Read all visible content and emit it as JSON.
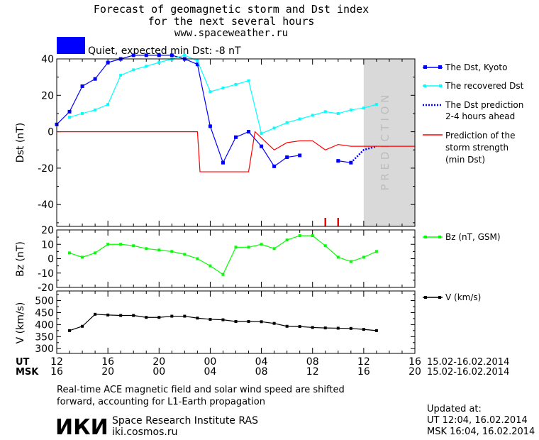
{
  "header": {
    "title_line1": "Forecast of geomagnetic storm and Dst index",
    "title_line2": "for the next several hours",
    "site": "www.spaceweather.ru",
    "status_color": "#0000ff",
    "status_text": "Quiet, expected min Dst: -8 nT"
  },
  "prediction_label": "P R E D I C T I O N",
  "time_axis": {
    "ut_label": "UT",
    "msk_label": "MSK",
    "ut_ticks": [
      "12",
      "16",
      "20",
      "00",
      "04",
      "08",
      "12",
      "16"
    ],
    "msk_ticks": [
      "16",
      "20",
      "00",
      "04",
      "08",
      "12",
      "16",
      "20"
    ],
    "date_range_ut": "15.02-16.02.2014",
    "date_range_msk": "15.02-16.02.2014"
  },
  "footer": {
    "note_line1": "Real-time ACE magnetic field and solar wind speed are shifted",
    "note_line2": "forward, accounting for L1-Earth propagation",
    "logo_text": "ИКИ",
    "institute": "Space Research Institute RAS",
    "institute_url": "iki.cosmos.ru",
    "updated_label": "Updated at:",
    "updated_ut": "UT   12:04, 16.02.2014",
    "updated_msk": "MSK 16:04, 16.02.2014"
  },
  "chart_data": [
    {
      "type": "line",
      "panel": "dst",
      "ylabel": "Dst (nT)",
      "ylim": [
        -52,
        40
      ],
      "yticks": [
        40,
        20,
        0,
        -20,
        -40
      ],
      "x_unit": "hours since 12 UT 15.02.2014",
      "xlim": [
        0,
        28
      ],
      "prediction_start": 24,
      "series": [
        {
          "name": "The Dst, Kyoto",
          "color": "#0000ff",
          "x": [
            0,
            1,
            2,
            3,
            4,
            5,
            6,
            7,
            8,
            9,
            10,
            11,
            12,
            13,
            14,
            15,
            16,
            17,
            18,
            19,
            20
          ],
          "y": [
            4,
            11,
            25,
            29,
            38,
            40,
            42,
            42,
            42,
            42,
            40,
            37,
            3,
            -17,
            -3,
            0,
            -8,
            -19,
            -14,
            -13,
            null
          ]
        },
        {
          "name": "The Dst, Kyoto (latest)",
          "color": "#0000ff",
          "x": [
            22,
            23
          ],
          "y": [
            -16,
            -17
          ]
        },
        {
          "name": "The recovered Dst",
          "color": "#00ffff",
          "x": [
            1,
            2,
            3,
            4,
            5,
            6,
            7,
            8,
            9,
            10,
            11,
            12,
            13,
            14,
            15,
            16,
            17,
            18,
            19,
            20,
            21,
            22,
            23,
            24,
            25
          ],
          "y": [
            8,
            10,
            12,
            15,
            31,
            34,
            36,
            38,
            40,
            42,
            39,
            22,
            24,
            26,
            28,
            -1,
            2,
            5,
            7,
            9,
            11,
            10,
            12,
            13,
            15
          ]
        },
        {
          "name": "The Dst prediction 2-4 hours ahead",
          "color": "#0000ff",
          "x": [
            23,
            24,
            25
          ],
          "y": [
            -17,
            -10,
            -8
          ]
        },
        {
          "name": "Prediction of the storm strength (min Dst)",
          "color": "#ff0000",
          "x": [
            0,
            11,
            11.2,
            15,
            15.5,
            17,
            18,
            19,
            20,
            21,
            22,
            23,
            24,
            25,
            26,
            27,
            28
          ],
          "y": [
            0,
            0,
            -22,
            -22,
            0,
            -10,
            -6,
            -5,
            -5,
            -10,
            -7,
            -8,
            -8,
            -8,
            -8,
            -8,
            -8
          ]
        }
      ],
      "storm_markers_x": [
        21,
        22
      ]
    },
    {
      "type": "line",
      "panel": "bz",
      "ylabel": "Bz (nT)",
      "ylim": [
        -20,
        20
      ],
      "yticks": [
        20,
        10,
        0,
        -10,
        -20
      ],
      "series": [
        {
          "name": "Bz (nT, GSM)",
          "color": "#00ff00",
          "x": [
            1,
            2,
            3,
            4,
            5,
            6,
            7,
            8,
            9,
            10,
            11,
            12,
            13,
            14,
            15,
            16,
            17,
            18,
            19,
            20,
            21,
            22,
            23,
            24,
            25
          ],
          "y": [
            4,
            1,
            4,
            10,
            10,
            9,
            7,
            6,
            5,
            3,
            0,
            -5,
            -11,
            8,
            8,
            10,
            7,
            13,
            16,
            16,
            9,
            1,
            -2,
            1,
            5
          ]
        }
      ]
    },
    {
      "type": "line",
      "panel": "v",
      "ylabel": "V (km/s)",
      "ylim": [
        280,
        540
      ],
      "yticks": [
        300,
        350,
        400,
        450,
        500
      ],
      "series": [
        {
          "name": "V (km/s)",
          "color": "#000000",
          "x": [
            1,
            2,
            3,
            4,
            5,
            6,
            7,
            8,
            9,
            10,
            11,
            12,
            13,
            14,
            15,
            16,
            17,
            18,
            19,
            20,
            21,
            22,
            23,
            24,
            25
          ],
          "y": [
            375,
            393,
            443,
            440,
            438,
            438,
            430,
            430,
            435,
            435,
            427,
            422,
            420,
            413,
            413,
            412,
            405,
            393,
            392,
            388,
            386,
            385,
            384,
            380,
            375
          ]
        }
      ]
    }
  ],
  "legend": {
    "dst_kyoto": "The Dst, Kyoto",
    "recovered": "The recovered Dst",
    "prediction_l1": "The Dst prediction",
    "prediction_l2": "2-4 hours ahead",
    "storm_l1": "Prediction of the",
    "storm_l2": "storm strength",
    "storm_l3": "(min Dst)",
    "bz": "Bz (nT, GSM)",
    "v": "V (km/s)"
  }
}
